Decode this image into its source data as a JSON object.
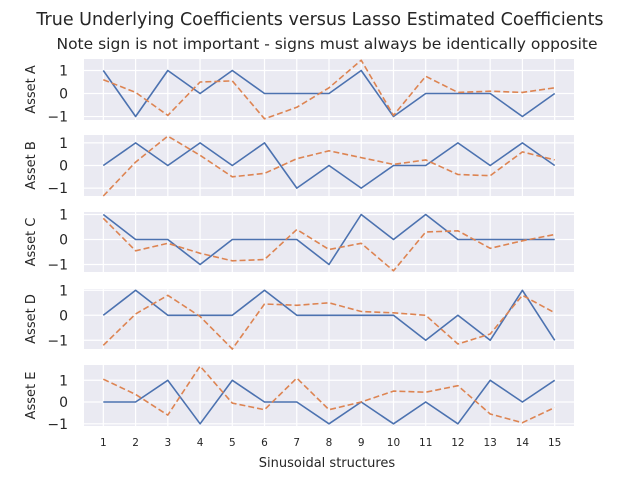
{
  "chart_data": {
    "type": "line",
    "title": "True Underlying Coefficients versus Lasso Estimated Coefficients",
    "subtitle": "Note sign is not important - signs must always be identically opposite",
    "xlabel": "Sinusoidal structures",
    "x": [
      1,
      2,
      3,
      4,
      5,
      6,
      7,
      8,
      9,
      10,
      11,
      12,
      13,
      14,
      15
    ],
    "x_tick_labels": [
      "1",
      "2",
      "3",
      "4",
      "5",
      "6",
      "7",
      "8",
      "9",
      "10",
      "11",
      "12",
      "13",
      "14",
      "15"
    ],
    "y_ticks": [
      1,
      0,
      -1
    ],
    "y_tick_labels": [
      "1",
      "0",
      "−1"
    ],
    "grid": true,
    "colors": {
      "true": "#4c72b0",
      "estimated": "#dd8452",
      "background": "#eaeaf2"
    },
    "panels": [
      {
        "ylabel": "Asset A",
        "ylim": [
          -1.15,
          1.5
        ],
        "series": [
          {
            "style": "solid",
            "values": [
              1,
              -1,
              1,
              0,
              1,
              0,
              0,
              0,
              1,
              -1,
              0,
              0,
              0,
              -1,
              0
            ]
          },
          {
            "style": "dashed",
            "values": [
              0.6,
              0.05,
              -0.95,
              0.5,
              0.55,
              -1.1,
              -0.6,
              0.25,
              1.45,
              -0.95,
              0.75,
              0.05,
              0.1,
              0.05,
              0.25
            ]
          }
        ]
      },
      {
        "ylabel": "Asset B",
        "ylim": [
          -1.35,
          1.35
        ],
        "series": [
          {
            "style": "solid",
            "values": [
              0,
              1,
              0,
              1,
              0,
              1,
              -1,
              0,
              -1,
              0,
              0,
              1,
              0,
              1,
              0
            ]
          },
          {
            "style": "dashed",
            "values": [
              -1.35,
              0.15,
              1.3,
              0.45,
              -0.5,
              -0.35,
              0.3,
              0.65,
              0.35,
              0.05,
              0.25,
              -0.4,
              -0.45,
              0.6,
              0.25
            ]
          }
        ]
      },
      {
        "ylabel": "Asset C",
        "ylim": [
          -1.3,
          1.1
        ],
        "series": [
          {
            "style": "solid",
            "values": [
              1,
              0,
              0,
              -1,
              0,
              0,
              0,
              -1,
              1,
              0,
              1,
              0,
              0,
              0,
              0
            ]
          },
          {
            "style": "dashed",
            "values": [
              0.85,
              -0.45,
              -0.15,
              -0.55,
              -0.85,
              -0.8,
              0.4,
              -0.4,
              -0.15,
              -1.25,
              0.3,
              0.35,
              -0.35,
              -0.05,
              0.2
            ]
          }
        ]
      },
      {
        "ylabel": "Asset D",
        "ylim": [
          -1.35,
          1.05
        ],
        "series": [
          {
            "style": "solid",
            "values": [
              0,
              1,
              0,
              0,
              0,
              1,
              0,
              0,
              0,
              0,
              -1,
              0,
              -1,
              1,
              -1
            ]
          },
          {
            "style": "dashed",
            "values": [
              -1.2,
              0.05,
              0.8,
              -0.05,
              -1.35,
              0.45,
              0.4,
              0.5,
              0.15,
              0.1,
              0.0,
              -1.15,
              -0.75,
              0.8,
              0.1
            ]
          }
        ]
      },
      {
        "ylabel": "Asset E",
        "ylim": [
          -1.1,
          1.7
        ],
        "series": [
          {
            "style": "solid",
            "values": [
              0,
              0,
              1,
              -1,
              1,
              0,
              0,
              -1,
              0,
              -1,
              0,
              -1,
              1,
              0,
              1
            ]
          },
          {
            "style": "dashed",
            "values": [
              1.05,
              0.35,
              -0.6,
              1.65,
              -0.05,
              -0.35,
              1.1,
              -0.35,
              0.0,
              0.5,
              0.45,
              0.75,
              -0.55,
              -0.95,
              -0.25
            ]
          }
        ]
      }
    ]
  }
}
